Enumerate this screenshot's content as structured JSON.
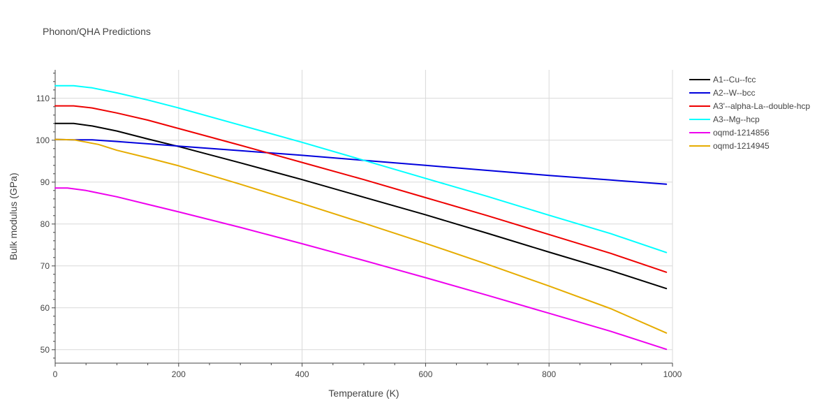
{
  "chart_data": {
    "type": "line",
    "title": "Phonon/QHA Predictions",
    "xlabel": "Temperature (K)",
    "ylabel": "Bulk modulus (GPa)",
    "xlim": [
      0,
      1000
    ],
    "ylim": [
      46.8,
      116.8
    ],
    "x_ticks": [
      0,
      200,
      400,
      600,
      800,
      1000
    ],
    "y_ticks": [
      50,
      60,
      70,
      80,
      90,
      100,
      110
    ],
    "grid": true,
    "legend_position": "right",
    "series": [
      {
        "name": "A1--Cu--fcc",
        "color": "#000000",
        "points": [
          [
            0,
            104.0
          ],
          [
            30,
            104.0
          ],
          [
            60,
            103.4
          ],
          [
            100,
            102.2
          ],
          [
            150,
            100.3
          ],
          [
            200,
            98.5
          ],
          [
            300,
            94.6
          ],
          [
            400,
            90.6
          ],
          [
            500,
            86.4
          ],
          [
            600,
            82.2
          ],
          [
            700,
            77.8
          ],
          [
            800,
            73.3
          ],
          [
            900,
            68.9
          ],
          [
            990,
            64.6
          ]
        ]
      },
      {
        "name": "A2--W--bcc",
        "color": "#0000dd",
        "points": [
          [
            0,
            100.2
          ],
          [
            30,
            100.1
          ],
          [
            60,
            100.1
          ],
          [
            100,
            99.7
          ],
          [
            200,
            98.6
          ],
          [
            300,
            97.5
          ],
          [
            400,
            96.4
          ],
          [
            500,
            95.2
          ],
          [
            600,
            94.0
          ],
          [
            700,
            92.8
          ],
          [
            800,
            91.6
          ],
          [
            900,
            90.5
          ],
          [
            990,
            89.5
          ]
        ]
      },
      {
        "name": "A3'--alpha-La--double-hcp",
        "color": "#ee0000",
        "points": [
          [
            0,
            108.2
          ],
          [
            30,
            108.2
          ],
          [
            60,
            107.7
          ],
          [
            100,
            106.5
          ],
          [
            150,
            104.8
          ],
          [
            200,
            102.8
          ],
          [
            300,
            98.8
          ],
          [
            400,
            94.7
          ],
          [
            500,
            90.6
          ],
          [
            600,
            86.3
          ],
          [
            700,
            82.0
          ],
          [
            800,
            77.5
          ],
          [
            900,
            73.0
          ],
          [
            990,
            68.5
          ]
        ]
      },
      {
        "name": "A3--Mg--hcp",
        "color": "#00ffff",
        "points": [
          [
            0,
            113.0
          ],
          [
            30,
            113.0
          ],
          [
            60,
            112.5
          ],
          [
            100,
            111.3
          ],
          [
            150,
            109.6
          ],
          [
            200,
            107.7
          ],
          [
            300,
            103.6
          ],
          [
            400,
            99.5
          ],
          [
            500,
            95.2
          ],
          [
            600,
            90.9
          ],
          [
            700,
            86.6
          ],
          [
            800,
            82.1
          ],
          [
            900,
            77.7
          ],
          [
            990,
            73.2
          ]
        ]
      },
      {
        "name": "oqmd-1214856",
        "color": "#ee00ee",
        "points": [
          [
            0,
            88.6
          ],
          [
            20,
            88.6
          ],
          [
            50,
            88.0
          ],
          [
            100,
            86.5
          ],
          [
            150,
            84.7
          ],
          [
            200,
            82.9
          ],
          [
            300,
            79.2
          ],
          [
            400,
            75.3
          ],
          [
            500,
            71.3
          ],
          [
            600,
            67.2
          ],
          [
            700,
            63.0
          ],
          [
            800,
            58.7
          ],
          [
            900,
            54.4
          ],
          [
            990,
            50.1
          ]
        ]
      },
      {
        "name": "oqmd-1214945",
        "color": "#e6ac00",
        "points": [
          [
            0,
            100.2
          ],
          [
            30,
            100.1
          ],
          [
            70,
            99.0
          ],
          [
            100,
            97.6
          ],
          [
            150,
            95.8
          ],
          [
            200,
            93.9
          ],
          [
            300,
            89.5
          ],
          [
            400,
            84.9
          ],
          [
            500,
            80.2
          ],
          [
            600,
            75.4
          ],
          [
            700,
            70.4
          ],
          [
            800,
            65.2
          ],
          [
            900,
            59.8
          ],
          [
            990,
            54.0
          ]
        ]
      }
    ]
  }
}
